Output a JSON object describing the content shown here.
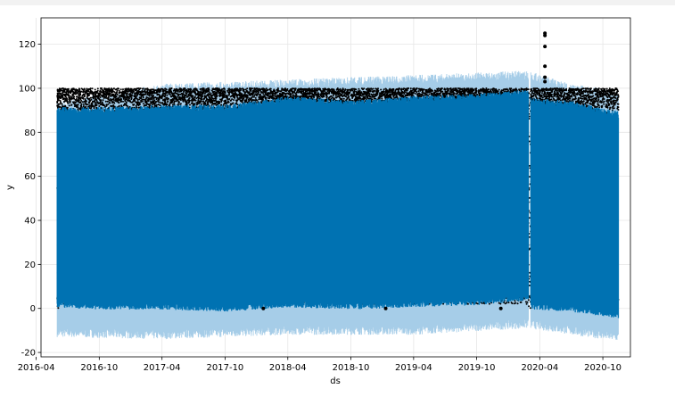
{
  "chart_data": {
    "type": "scatter",
    "title": "",
    "xlabel": "ds",
    "ylabel": "y",
    "xlim": [
      "2016-04-15",
      "2020-12-20"
    ],
    "ylim": [
      -22,
      132
    ],
    "grid": true,
    "x_ticks": [
      "2016-04",
      "2016-10",
      "2017-04",
      "2017-10",
      "2018-04",
      "2018-10",
      "2019-04",
      "2019-10",
      "2020-04",
      "2020-10"
    ],
    "y_ticks": [
      -20,
      0,
      20,
      40,
      60,
      80,
      100,
      120
    ],
    "data_range": [
      "2016-06-01",
      "2020-11-15"
    ],
    "gap": [
      "2020-02-28",
      "2020-03-06"
    ],
    "series": [
      {
        "role": "observed",
        "color": "#000000",
        "marker": "dot",
        "typical_range": [
          0,
          100
        ],
        "upper_band": [
          88,
          100
        ],
        "outliers": [
          {
            "x": "2020-04-16",
            "y": 125
          },
          {
            "x": "2020-04-16",
            "y": 124
          },
          {
            "x": "2020-04-16",
            "y": 119
          },
          {
            "x": "2020-04-16",
            "y": 110
          },
          {
            "x": "2020-04-16",
            "y": 105
          },
          {
            "x": "2020-04-16",
            "y": 103
          },
          {
            "x": "2018-01-20",
            "y": 0
          },
          {
            "x": "2019-01-10",
            "y": 0
          },
          {
            "x": "2019-12-10",
            "y": 0
          }
        ]
      },
      {
        "role": "forecast",
        "color": "#0072B2",
        "envelope": [
          {
            "x": "2016-06-01",
            "lower": 2,
            "upper": 90
          },
          {
            "x": "2016-10-01",
            "lower": 1,
            "upper": 90
          },
          {
            "x": "2017-04-01",
            "lower": 1,
            "upper": 91
          },
          {
            "x": "2017-10-01",
            "lower": 0,
            "upper": 91
          },
          {
            "x": "2018-04-01",
            "lower": 2,
            "upper": 95
          },
          {
            "x": "2018-10-01",
            "lower": 1,
            "upper": 93
          },
          {
            "x": "2019-04-01",
            "lower": 2,
            "upper": 95
          },
          {
            "x": "2019-10-01",
            "lower": 3,
            "upper": 96
          },
          {
            "x": "2020-02-27",
            "lower": 5,
            "upper": 98
          },
          {
            "x": "2020-03-07",
            "lower": 1,
            "upper": 94
          },
          {
            "x": "2020-07-01",
            "lower": 0,
            "upper": 93
          },
          {
            "x": "2020-11-15",
            "lower": -3,
            "upper": 88
          }
        ]
      },
      {
        "role": "uncertainty interval",
        "color": "#a6cde8",
        "envelope": [
          {
            "x": "2016-06-01",
            "lower": -11,
            "upper": 92
          },
          {
            "x": "2017-04-01",
            "lower": -12,
            "upper": 100
          },
          {
            "x": "2018-04-01",
            "lower": -10,
            "upper": 102
          },
          {
            "x": "2019-04-01",
            "lower": -10,
            "upper": 104
          },
          {
            "x": "2020-02-27",
            "lower": -7,
            "upper": 106
          },
          {
            "x": "2020-07-01",
            "lower": -10,
            "upper": 100
          },
          {
            "x": "2020-11-15",
            "lower": -13,
            "upper": 97
          }
        ]
      }
    ]
  }
}
